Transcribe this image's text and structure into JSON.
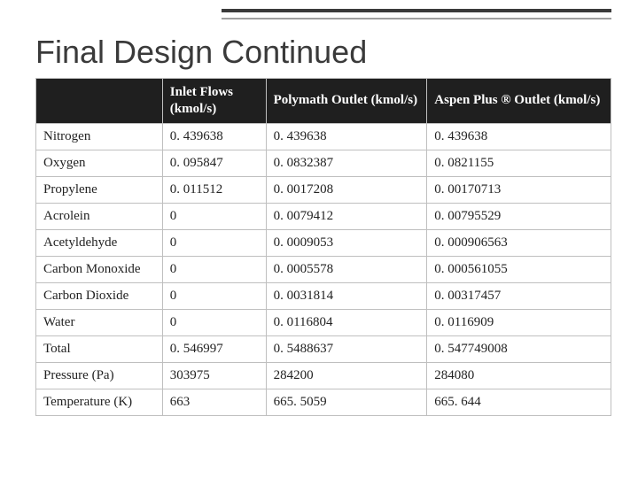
{
  "title": "Final Design Continued",
  "colors": {
    "header_bg": "#1f1f1f",
    "header_text": "#ffffff",
    "border": "#bfbfbf",
    "title_text": "#3a3a3a",
    "line_thick": "#3b3b3b",
    "line_thin": "#a0a0a0"
  },
  "table": {
    "columns": [
      "",
      "Inlet Flows (kmol/s)",
      "Polymath Outlet (kmol/s)",
      "Aspen Plus ® Outlet (kmol/s)"
    ],
    "rows": [
      [
        "Nitrogen",
        "0. 439638",
        "0. 439638",
        "0. 439638"
      ],
      [
        "Oxygen",
        "0. 095847",
        "0. 0832387",
        "0. 0821155"
      ],
      [
        "Propylene",
        "0. 011512",
        "0. 0017208",
        "0. 00170713"
      ],
      [
        "Acrolein",
        "0",
        "0. 0079412",
        "0. 00795529"
      ],
      [
        "Acetyldehyde",
        "0",
        "0. 0009053",
        "0. 000906563"
      ],
      [
        "Carbon Monoxide",
        "0",
        "0. 0005578",
        "0. 000561055"
      ],
      [
        "Carbon Dioxide",
        "0",
        "0. 0031814",
        "0. 00317457"
      ],
      [
        "Water",
        "0",
        "0. 0116804",
        "0. 0116909"
      ],
      [
        "Total",
        "0. 546997",
        "0. 5488637",
        "0. 547749008"
      ],
      [
        "Pressure (Pa)",
        "303975",
        "284200",
        "284080"
      ],
      [
        "Temperature (K)",
        "663",
        "665. 5059",
        "665. 644"
      ]
    ]
  }
}
